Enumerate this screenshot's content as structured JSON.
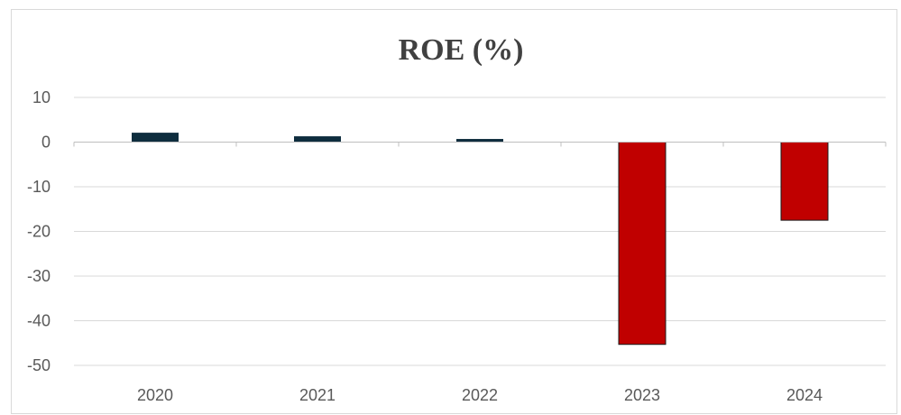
{
  "chart_data": {
    "type": "bar",
    "title": "ROE (%)",
    "xlabel": "",
    "ylabel": "",
    "categories": [
      "2020",
      "2021",
      "2022",
      "2023",
      "2024"
    ],
    "values": [
      2.1,
      1.3,
      0.7,
      -45.3,
      -17.5
    ],
    "ylim": [
      -50,
      10
    ],
    "yticks": [
      10,
      0,
      -10,
      -20,
      -30,
      -40,
      -50
    ],
    "grid": true,
    "legend": "none",
    "colors": {
      "positive": "#0e2d3e",
      "negative": "#c00000",
      "grid": "#d9d9d9",
      "axis": "#bfbfbf"
    }
  }
}
